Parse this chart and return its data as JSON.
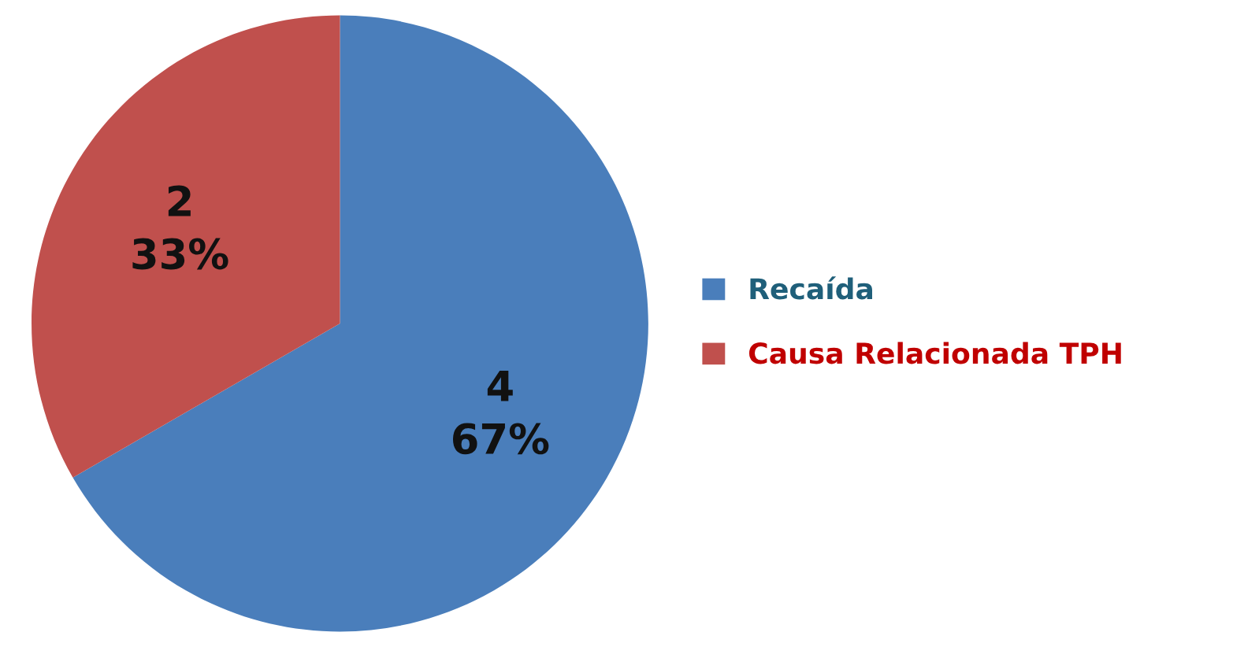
{
  "chart_data": {
    "type": "pie",
    "categories": [
      "Recaída",
      "Causa Relacionada TPH"
    ],
    "values": [
      4,
      2
    ],
    "colors": [
      "#4a7ebb",
      "#c0504d"
    ],
    "value_labels": [
      "4\n67%",
      "2\n33%"
    ],
    "legend": "right"
  }
}
